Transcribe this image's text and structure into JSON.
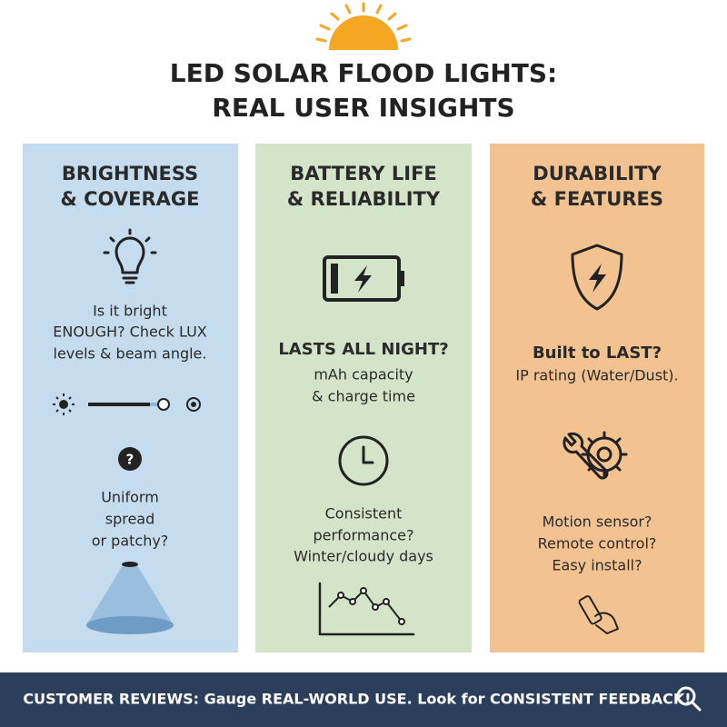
{
  "header": {
    "title": [
      "LED SOLAR FLOOD LIGHTS:",
      "REAL USER INSIGHTS"
    ]
  },
  "columns": [
    {
      "heading": [
        "BRIGHTNESS",
        "& COVERAGE"
      ],
      "text": [
        "Is it bright",
        "ENOUGH? Check LUX",
        "levels & beam angle."
      ],
      "icon_text": "?",
      "text2": [
        "Uniform",
        "spread",
        "or patchy?"
      ]
    },
    {
      "heading": [
        "BATTERY LIFE",
        "& RELIABILITY"
      ],
      "bold": "LASTS ALL NIGHT?",
      "text": [
        "mAh capacity",
        "& charge time"
      ],
      "text2": [
        "Consistent",
        "performance?",
        "Winter/cloudy days"
      ]
    },
    {
      "heading": [
        "DURABILITY",
        "& FEATURES"
      ],
      "bold": "Built to LAST?",
      "text": [
        "IP rating (Water/Dust)."
      ],
      "text2": [
        "Motion sensor?",
        "Remote control?",
        "Easy install?"
      ]
    }
  ],
  "footer": {
    "text": "CUSTOMER REVIEWS: Gauge REAL-WORLD USE. Look for CONSISTENT FEEDBACK!"
  }
}
